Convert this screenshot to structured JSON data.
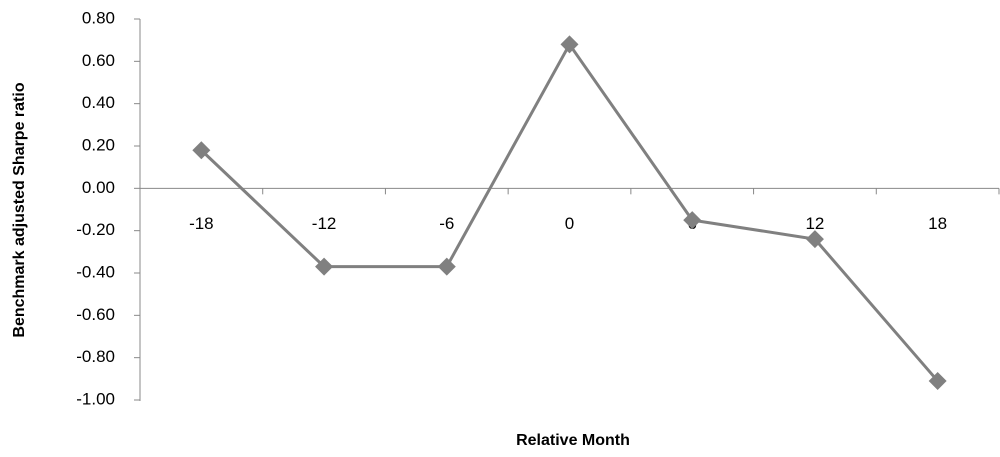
{
  "chart_data": {
    "type": "line",
    "x_label": "Relative Month",
    "y_label": "Benchmark adjusted Sharpe ratio",
    "categories": [
      "-18",
      "-12",
      "-6",
      "0",
      "6",
      "12",
      "18"
    ],
    "series": [
      {
        "color": "#808080",
        "values": [
          0.18,
          -0.37,
          -0.37,
          0.68,
          -0.15,
          -0.24,
          -0.91
        ]
      }
    ],
    "ylim": [
      -1.0,
      0.8
    ],
    "yticks": [
      {
        "value": 0.8,
        "label": "0.80"
      },
      {
        "value": 0.6,
        "label": "0.60"
      },
      {
        "value": 0.4,
        "label": "0.40"
      },
      {
        "value": 0.2,
        "label": "0.20"
      },
      {
        "value": 0,
        "label": "0.00"
      },
      {
        "value": -0.2,
        "label": "-0.20"
      },
      {
        "value": -0.4,
        "label": "-0.40"
      },
      {
        "value": -0.6,
        "label": "-0.60"
      },
      {
        "value": -0.8,
        "label": "-0.80"
      },
      {
        "value": -1.0,
        "label": "-1.00"
      }
    ]
  }
}
